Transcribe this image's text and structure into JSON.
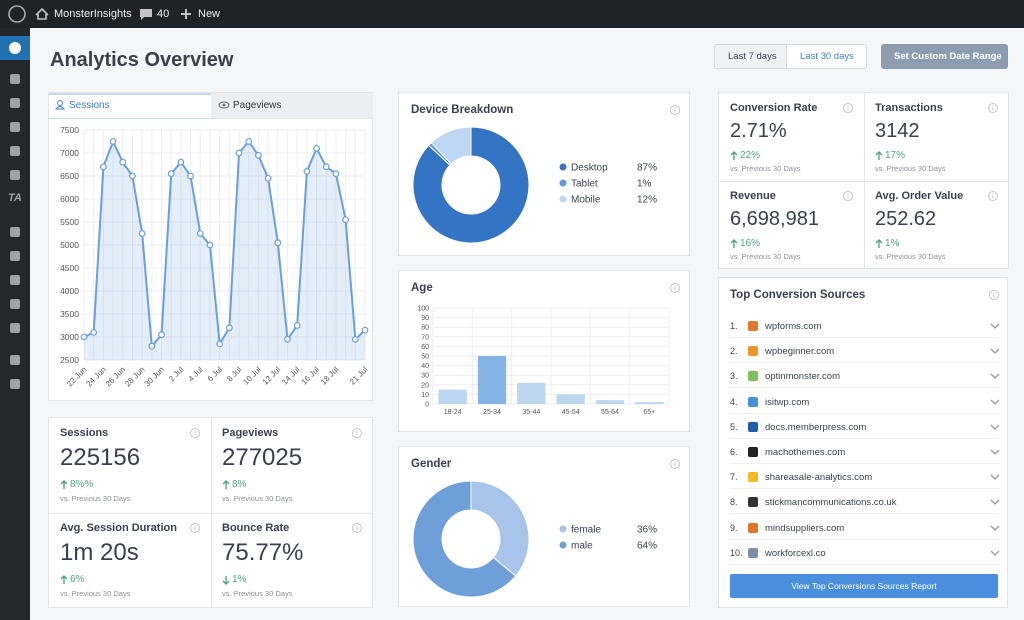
{
  "admin_bar": {
    "site": "MonsterInsights",
    "comments": "40",
    "new": "New"
  },
  "sidebar": {
    "ta": "TA"
  },
  "header": {
    "title": "Analytics Overview",
    "buttons": [
      "Last 7 days",
      "Last 30 days",
      "Set Custom Date Range"
    ]
  },
  "tabs": [
    "Sessions",
    "Pageviews"
  ],
  "chart_data": [
    {
      "type": "line",
      "categories": [
        "22 Jun",
        null,
        "24 Jun",
        null,
        "26 Jun",
        null,
        "28 Jun",
        null,
        "30 Jun",
        null,
        "2 Jul",
        null,
        "4 Jul",
        null,
        "6 Jul",
        null,
        "8 Jul",
        null,
        "10 Jul",
        null,
        "12 Jul",
        null,
        "14 Jul",
        null,
        "16 Jul",
        null,
        "18 Jul",
        null,
        null,
        "21 Jul"
      ],
      "values": [
        3000,
        3100,
        6700,
        7250,
        6800,
        6500,
        5250,
        2800,
        3050,
        6550,
        6800,
        6500,
        5250,
        5000,
        2850,
        3200,
        7000,
        7250,
        6950,
        6450,
        5050,
        2950,
        3250,
        6600,
        7100,
        6700,
        6550,
        5550,
        2950,
        3150
      ],
      "color": "#6a9fdc",
      "ylim": [
        2500,
        7500
      ],
      "yticks": [
        2500,
        3000,
        3500,
        4000,
        4500,
        5000,
        5500,
        6000,
        6500,
        7000,
        7500
      ],
      "grid": true
    },
    {
      "type": "pie",
      "title": "Device Breakdown",
      "categories": [
        "Desktop",
        "Tablet",
        "Mobile"
      ],
      "values": [
        87,
        1,
        12
      ],
      "value_labels": [
        "87%",
        "1%",
        "12%"
      ],
      "colors": [
        "#3474c4",
        "#5d9ae0",
        "#bcd6f4"
      ],
      "donut": true
    },
    {
      "type": "bar",
      "title": "Age",
      "categories": [
        "18-24",
        "25-34",
        "35-44",
        "45-54",
        "55-64",
        "65+"
      ],
      "values": [
        15,
        50,
        22,
        10,
        4,
        2
      ],
      "colors": [
        "#bcd6f2",
        "#86b4e6",
        "#bcd6f2",
        "#bcd6f2",
        "#bcd6f2",
        "#bcd6f2"
      ],
      "ylim": [
        0,
        100
      ],
      "yticks": [
        0,
        10,
        20,
        30,
        40,
        50,
        60,
        70,
        80,
        90,
        100
      ],
      "grid": true
    },
    {
      "type": "pie",
      "title": "Gender",
      "categories": [
        "female",
        "male"
      ],
      "values": [
        36,
        64
      ],
      "value_labels": [
        "36%",
        "64%"
      ],
      "colors": [
        "#a8c4ea",
        "#6f9fd9"
      ],
      "donut": true
    }
  ],
  "overview_stats": [
    {
      "label": "Sessions",
      "value": "225156",
      "change": "8%%",
      "trend": "up",
      "compare": "vs. Previous 30 Days"
    },
    {
      "label": "Pageviews",
      "value": "277025",
      "change": "8%",
      "trend": "up",
      "compare": "vs. Previous 30 Days"
    },
    {
      "label": "Avg. Session Duration",
      "value": "1m 20s",
      "change": "6%",
      "trend": "up",
      "compare": "vs. Previous 30 Days"
    },
    {
      "label": "Bounce Rate",
      "value": "75.77%",
      "change": "1%",
      "trend": "down",
      "compare": "vs. Previous 30 Days"
    }
  ],
  "conversion_stats": [
    {
      "label": "Conversion Rate",
      "value": "2.71%",
      "change": "22%",
      "trend": "up",
      "compare": "vs. Previous 30 Days"
    },
    {
      "label": "Transactions",
      "value": "3142",
      "change": "17%",
      "trend": "up",
      "compare": "vs. Previous 30 Days"
    },
    {
      "label": "Revenue",
      "value": "6,698,981",
      "change": "16%",
      "trend": "up",
      "compare": "vs. Previous 30 Days"
    },
    {
      "label": "Avg. Order Value",
      "value": "252.62",
      "change": "1%",
      "trend": "up",
      "compare": "vs. Previous 30 Days"
    }
  ],
  "top_sources": {
    "title": "Top Conversion Sources",
    "items": [
      {
        "rank": "1.",
        "domain": "wpforms.com",
        "color": "#e27730"
      },
      {
        "rank": "2.",
        "domain": "wpbeginner.com",
        "color": "#f0932b"
      },
      {
        "rank": "3.",
        "domain": "optinmonster.com",
        "color": "#7fc15c"
      },
      {
        "rank": "4.",
        "domain": "isitwp.com",
        "color": "#4a90d9"
      },
      {
        "rank": "5.",
        "domain": "docs.memberpress.com",
        "color": "#1f5fa9"
      },
      {
        "rank": "6.",
        "domain": "machothemes.com",
        "color": "#222222"
      },
      {
        "rank": "7.",
        "domain": "shareasale-analytics.com",
        "color": "#f5b921"
      },
      {
        "rank": "8.",
        "domain": "stickmancommunications.co.uk",
        "color": "#333333"
      },
      {
        "rank": "9.",
        "domain": "mindsuppliers.com",
        "color": "#e0782a"
      },
      {
        "rank": "10.",
        "domain": "workforcexl.co",
        "color": "#7b8fa6"
      }
    ],
    "button": "View Top Conversions Sources Report"
  }
}
